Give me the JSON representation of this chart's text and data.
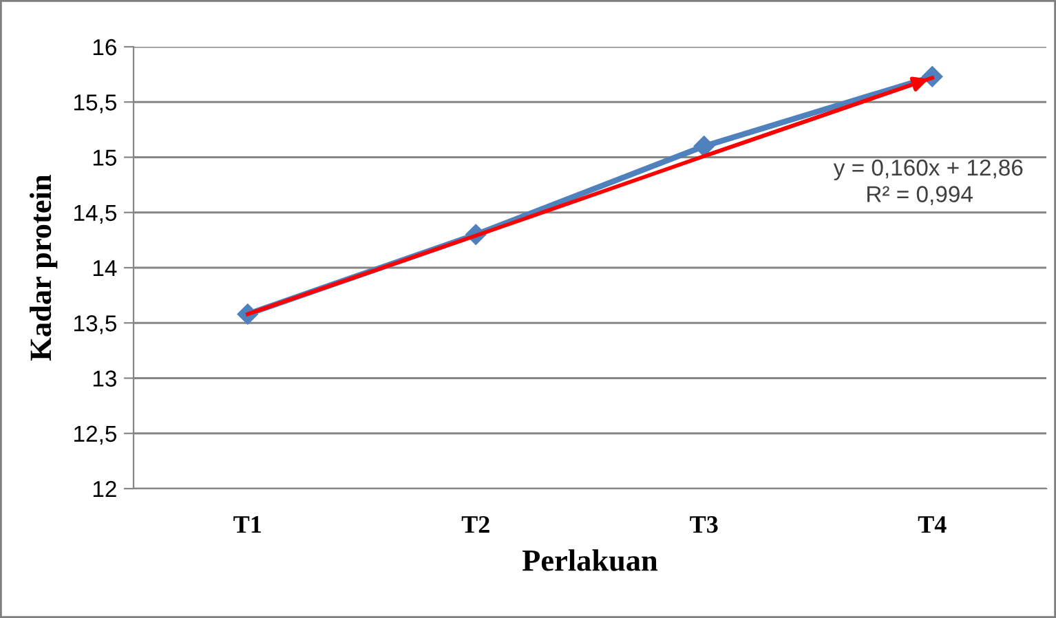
{
  "chart_data": {
    "type": "line",
    "xlabel": "Perlakuan",
    "ylabel": "Kadar protein",
    "categories": [
      "T1",
      "T2",
      "T3",
      "T4"
    ],
    "series": [
      {
        "color": "#4f81bd",
        "values": [
          13.58,
          14.3,
          15.1,
          15.73
        ],
        "marker": "diamond"
      },
      {
        "type": "line",
        "color": "#ff0000",
        "values": [
          13.58,
          14.29,
          15.01,
          15.72
        ],
        "marker": "none"
      }
    ],
    "ylim": [
      12,
      16
    ],
    "yticks": [
      12,
      {
        "value": 12.5,
        "label": "12,5"
      },
      13,
      {
        "value": 13.5,
        "label": "13,5"
      },
      14,
      {
        "value": 14.5,
        "label": "14,5"
      },
      15,
      {
        "value": 15.5,
        "label": "15,5"
      },
      16
    ],
    "grid": "y",
    "legend": false,
    "annotations": [
      "y = 0,160x + 12,86",
      "R² = 0,994"
    ]
  }
}
